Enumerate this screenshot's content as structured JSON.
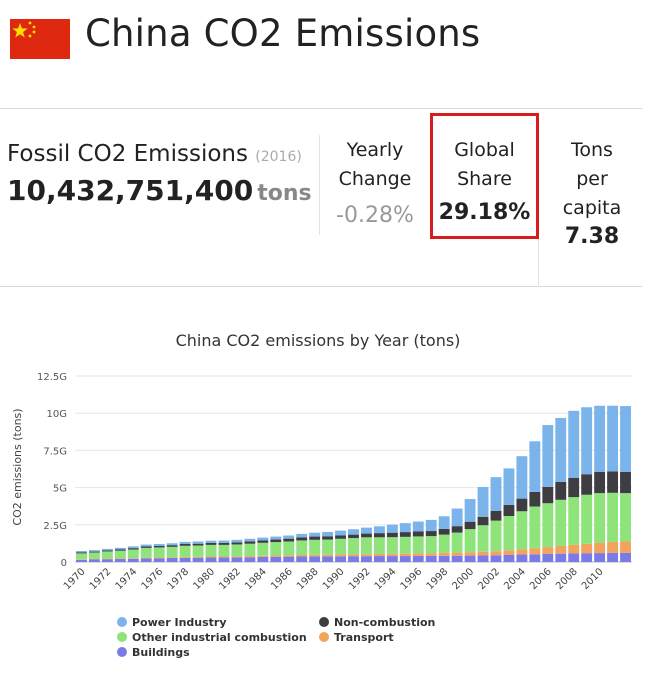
{
  "header": {
    "title": "China CO2 Emissions",
    "flag_colors": {
      "field": "#de2910",
      "stars": "#ffde00"
    }
  },
  "stats": {
    "fossil": {
      "label": "Fossil CO2 Emissions",
      "year": "(2016)",
      "value": "10,432,751,400",
      "unit": "tons"
    },
    "yearly_change": {
      "label_line1": "Yearly",
      "label_line2": "Change",
      "value": "-0.28%"
    },
    "global_share": {
      "label_line1": "Global",
      "label_line2": "Share",
      "value": "29.18%"
    },
    "per_capita": {
      "label_line1": "Tons",
      "label_line2": "per",
      "label_line3": "capita",
      "value": "7.38"
    },
    "highlight_color": "#d91d1d"
  },
  "chart_data": {
    "type": "bar",
    "stacked": true,
    "title": "China CO2 emissions by Year (tons)",
    "ylabel": "CO2 emissions (tons)",
    "xlabel": "",
    "ylim": [
      0,
      12.5
    ],
    "yticks": [
      0,
      2.5,
      5,
      7.5,
      10,
      12.5
    ],
    "ytick_labels": [
      "0",
      "2.5G",
      "5G",
      "7.5G",
      "10G",
      "12.5G"
    ],
    "xtick_labels": [
      "1970",
      "1972",
      "1974",
      "1976",
      "1978",
      "1980",
      "1982",
      "1984",
      "1986",
      "1988",
      "1990",
      "1992",
      "1994",
      "1996",
      "1998",
      "2000",
      "2002",
      "2004",
      "2006",
      "2008",
      "2010"
    ],
    "categories": [
      "1970",
      "1971",
      "1972",
      "1973",
      "1974",
      "1975",
      "1976",
      "1977",
      "1978",
      "1979",
      "1980",
      "1981",
      "1982",
      "1983",
      "1984",
      "1985",
      "1986",
      "1987",
      "1988",
      "1989",
      "1990",
      "1991",
      "1992",
      "1993",
      "1994",
      "1995",
      "1996",
      "1997",
      "1998",
      "1999",
      "2000",
      "2001",
      "2002",
      "2003",
      "2004",
      "2005",
      "2006",
      "2007",
      "2008",
      "2009",
      "2010",
      "2011",
      "2012"
    ],
    "grid": true,
    "legend_position": "bottom",
    "series": [
      {
        "name": "Buildings",
        "color": "#7b7be8",
        "values": [
          0.15,
          0.17,
          0.19,
          0.2,
          0.22,
          0.24,
          0.25,
          0.27,
          0.28,
          0.29,
          0.3,
          0.3,
          0.31,
          0.32,
          0.34,
          0.35,
          0.36,
          0.37,
          0.38,
          0.38,
          0.38,
          0.39,
          0.39,
          0.4,
          0.4,
          0.4,
          0.41,
          0.41,
          0.42,
          0.42,
          0.43,
          0.44,
          0.45,
          0.47,
          0.5,
          0.52,
          0.54,
          0.56,
          0.58,
          0.59,
          0.6,
          0.62,
          0.62
        ]
      },
      {
        "name": "Transport",
        "color": "#f4a35d",
        "values": [
          0.03,
          0.03,
          0.04,
          0.04,
          0.04,
          0.05,
          0.05,
          0.05,
          0.06,
          0.06,
          0.07,
          0.07,
          0.07,
          0.08,
          0.08,
          0.09,
          0.09,
          0.1,
          0.11,
          0.11,
          0.12,
          0.12,
          0.13,
          0.14,
          0.15,
          0.16,
          0.17,
          0.18,
          0.19,
          0.21,
          0.23,
          0.25,
          0.28,
          0.32,
          0.36,
          0.41,
          0.46,
          0.52,
          0.58,
          0.63,
          0.68,
          0.73,
          0.76
        ]
      },
      {
        "name": "Other industrial combustion",
        "color": "#8ee37a",
        "values": [
          0.4,
          0.44,
          0.48,
          0.52,
          0.58,
          0.66,
          0.68,
          0.7,
          0.75,
          0.76,
          0.78,
          0.78,
          0.8,
          0.83,
          0.87,
          0.9,
          0.93,
          0.98,
          1.0,
          1.02,
          1.06,
          1.1,
          1.14,
          1.12,
          1.12,
          1.13,
          1.14,
          1.15,
          1.23,
          1.35,
          1.55,
          1.78,
          2.05,
          2.3,
          2.55,
          2.8,
          2.95,
          3.1,
          3.2,
          3.3,
          3.35,
          3.3,
          3.25
        ]
      },
      {
        "name": "Non-combustion",
        "color": "#3d3d42",
        "values": [
          0.06,
          0.06,
          0.07,
          0.08,
          0.09,
          0.1,
          0.1,
          0.11,
          0.12,
          0.12,
          0.13,
          0.13,
          0.14,
          0.15,
          0.16,
          0.17,
          0.19,
          0.21,
          0.22,
          0.22,
          0.22,
          0.23,
          0.25,
          0.28,
          0.3,
          0.32,
          0.33,
          0.34,
          0.38,
          0.43,
          0.5,
          0.57,
          0.65,
          0.75,
          0.85,
          0.98,
          1.1,
          1.2,
          1.3,
          1.38,
          1.42,
          1.44,
          1.43
        ]
      },
      {
        "name": "Power Industry",
        "color": "#7ab4ea",
        "values": [
          0.1,
          0.1,
          0.1,
          0.11,
          0.12,
          0.12,
          0.13,
          0.13,
          0.14,
          0.15,
          0.15,
          0.16,
          0.17,
          0.18,
          0.19,
          0.2,
          0.21,
          0.23,
          0.26,
          0.29,
          0.33,
          0.36,
          0.4,
          0.46,
          0.54,
          0.6,
          0.67,
          0.75,
          0.85,
          1.18,
          1.52,
          2.0,
          2.27,
          2.45,
          2.85,
          3.4,
          4.15,
          4.3,
          4.5,
          4.5,
          4.45,
          4.41,
          4.42
        ]
      }
    ],
    "legend_order": [
      "Power Industry",
      "Non-combustion",
      "Other industrial combustion",
      "Transport",
      "Buildings"
    ]
  }
}
